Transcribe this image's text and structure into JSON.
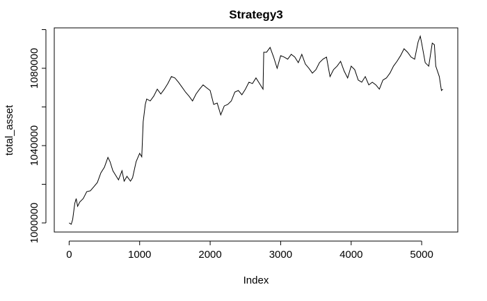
{
  "chart_data": {
    "type": "line",
    "title": "Strategy3",
    "x_label": "Index",
    "y_label": "total_asset",
    "x": [
      0,
      30,
      50,
      80,
      100,
      120,
      150,
      200,
      250,
      300,
      350,
      400,
      450,
      500,
      550,
      580,
      620,
      650,
      700,
      750,
      780,
      820,
      870,
      900,
      950,
      1000,
      1030,
      1050,
      1080,
      1100,
      1150,
      1200,
      1250,
      1300,
      1350,
      1400,
      1450,
      1500,
      1550,
      1600,
      1650,
      1700,
      1750,
      1800,
      1850,
      1900,
      1950,
      2000,
      2050,
      2100,
      2150,
      2200,
      2250,
      2300,
      2350,
      2400,
      2450,
      2500,
      2550,
      2600,
      2650,
      2700,
      2750,
      2760,
      2800,
      2850,
      2900,
      2950,
      3000,
      3050,
      3100,
      3150,
      3200,
      3250,
      3300,
      3350,
      3400,
      3450,
      3500,
      3550,
      3600,
      3650,
      3700,
      3750,
      3800,
      3850,
      3900,
      3950,
      4000,
      4050,
      4100,
      4150,
      4200,
      4250,
      4300,
      4350,
      4400,
      4450,
      4500,
      4550,
      4600,
      4650,
      4700,
      4750,
      4800,
      4850,
      4900,
      4950,
      4980,
      5000,
      5050,
      5100,
      5150,
      5180,
      5200,
      5250,
      5280,
      5300
    ],
    "values": [
      1000000,
      999300,
      1001800,
      1010100,
      1012600,
      1008600,
      1010800,
      1012600,
      1016200,
      1016600,
      1018700,
      1020900,
      1025900,
      1028800,
      1033900,
      1031700,
      1027000,
      1025200,
      1022300,
      1027000,
      1021600,
      1024100,
      1021600,
      1023400,
      1031700,
      1036000,
      1034200,
      1052300,
      1061300,
      1064100,
      1063100,
      1065600,
      1069200,
      1066700,
      1069200,
      1072100,
      1075700,
      1075000,
      1072800,
      1070300,
      1067700,
      1065600,
      1063100,
      1066700,
      1069200,
      1071400,
      1069900,
      1068500,
      1061300,
      1062000,
      1055900,
      1060500,
      1061300,
      1063100,
      1067700,
      1068500,
      1066300,
      1069200,
      1072800,
      1072100,
      1075000,
      1072100,
      1069200,
      1088300,
      1088300,
      1090800,
      1085800,
      1080000,
      1086500,
      1085800,
      1084700,
      1087200,
      1085800,
      1082900,
      1087200,
      1082200,
      1080000,
      1077500,
      1079300,
      1082900,
      1084700,
      1085800,
      1075700,
      1079300,
      1081100,
      1083600,
      1078600,
      1075000,
      1081100,
      1079300,
      1073900,
      1072800,
      1075700,
      1071400,
      1072800,
      1071400,
      1069200,
      1073900,
      1075000,
      1077500,
      1081100,
      1083600,
      1086500,
      1090100,
      1088300,
      1085800,
      1084700,
      1093700,
      1096600,
      1093000,
      1082900,
      1081100,
      1093000,
      1092200,
      1081100,
      1075700,
      1068500,
      1069200
    ],
    "color": "#000000",
    "xlim": [
      -211,
      5512
    ],
    "ylim": [
      995300,
      1100900
    ],
    "xticks": [
      0,
      1000,
      2000,
      3000,
      4000,
      5000
    ],
    "yticks": [
      1000000,
      1040000,
      1080000
    ],
    "yminor_ticks": [
      1020000,
      1060000,
      1100000
    ]
  }
}
